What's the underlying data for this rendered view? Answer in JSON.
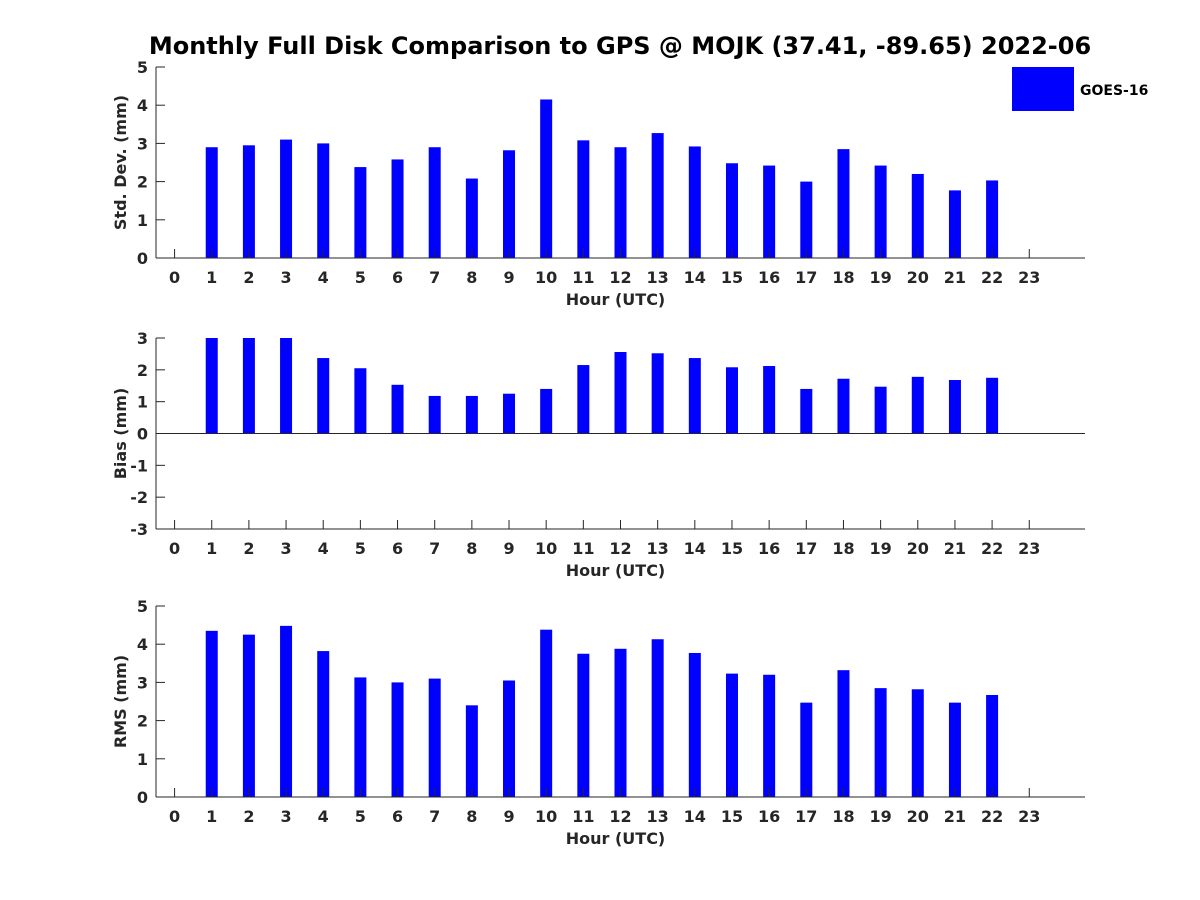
{
  "title": "Monthly Full Disk Comparison to GPS @ MOJK (37.41, -89.65) 2022-06",
  "legend": {
    "label": "GOES-16",
    "color": "#0000ff",
    "placement": "top-right"
  },
  "chart_data": [
    {
      "type": "bar",
      "name": "std-dev",
      "xlabel": "Hour (UTC)",
      "ylabel": "Std. Dev. (mm)",
      "x": [
        0,
        1,
        2,
        3,
        4,
        5,
        6,
        7,
        8,
        9,
        10,
        11,
        12,
        13,
        14,
        15,
        16,
        17,
        18,
        19,
        20,
        21,
        22,
        23
      ],
      "series": [
        {
          "name": "GOES-16",
          "color": "#0000ff",
          "values": [
            null,
            2.9,
            2.95,
            3.1,
            3.0,
            2.38,
            2.58,
            2.9,
            2.08,
            2.82,
            4.15,
            3.08,
            2.9,
            3.27,
            2.92,
            2.48,
            2.42,
            2.0,
            2.85,
            2.42,
            2.2,
            1.77,
            2.03,
            null
          ]
        }
      ],
      "ylim": [
        0,
        5
      ],
      "yticks": [
        0,
        1,
        2,
        3,
        4,
        5
      ],
      "xlim": [
        -0.5,
        24.5
      ],
      "grid": false
    },
    {
      "type": "bar",
      "name": "bias",
      "xlabel": "Hour (UTC)",
      "ylabel": "Bias (mm)",
      "x": [
        0,
        1,
        2,
        3,
        4,
        5,
        6,
        7,
        8,
        9,
        10,
        11,
        12,
        13,
        14,
        15,
        16,
        17,
        18,
        19,
        20,
        21,
        22,
        23
      ],
      "series": [
        {
          "name": "GOES-16",
          "color": "#0000ff",
          "values": [
            null,
            3.0,
            3.0,
            3.0,
            2.37,
            2.05,
            1.53,
            1.18,
            1.18,
            1.25,
            1.4,
            2.15,
            2.56,
            2.52,
            2.37,
            2.08,
            2.12,
            1.4,
            1.72,
            1.47,
            1.78,
            1.68,
            1.75,
            null
          ]
        }
      ],
      "ylim": [
        -3,
        3
      ],
      "yticks": [
        -3,
        -2,
        -1,
        0,
        1,
        2,
        3
      ],
      "xlim": [
        -0.5,
        24.5
      ],
      "zero_line": true,
      "grid": false
    },
    {
      "type": "bar",
      "name": "rms",
      "xlabel": "Hour (UTC)",
      "ylabel": "RMS (mm)",
      "x": [
        0,
        1,
        2,
        3,
        4,
        5,
        6,
        7,
        8,
        9,
        10,
        11,
        12,
        13,
        14,
        15,
        16,
        17,
        18,
        19,
        20,
        21,
        22,
        23
      ],
      "series": [
        {
          "name": "GOES-16",
          "color": "#0000ff",
          "values": [
            null,
            4.35,
            4.25,
            4.48,
            3.82,
            3.13,
            3.0,
            3.1,
            2.4,
            3.05,
            4.38,
            3.75,
            3.88,
            4.13,
            3.77,
            3.23,
            3.2,
            2.47,
            3.32,
            2.85,
            2.82,
            2.47,
            2.67,
            null
          ]
        }
      ],
      "ylim": [
        0,
        5
      ],
      "yticks": [
        0,
        1,
        2,
        3,
        4,
        5
      ],
      "xlim": [
        -0.5,
        24.5
      ],
      "grid": false
    }
  ]
}
